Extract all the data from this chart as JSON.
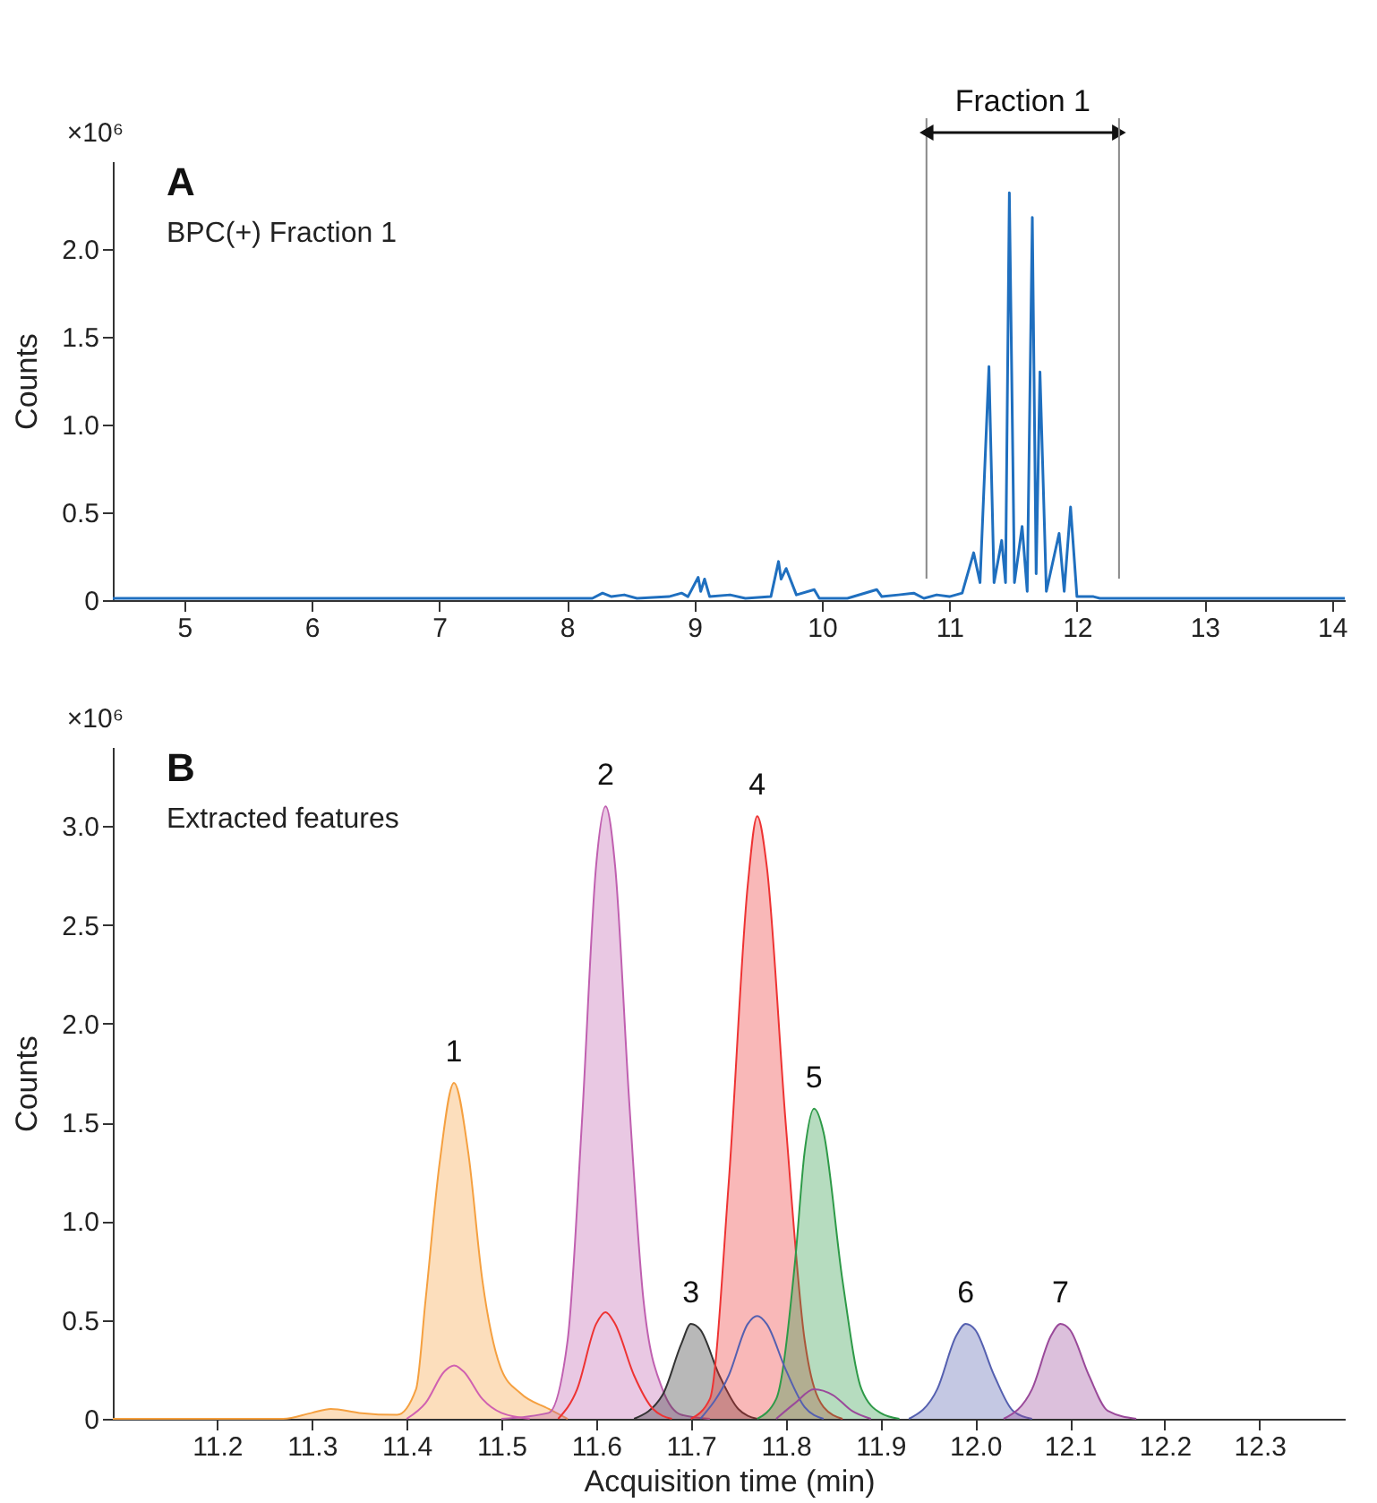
{
  "chart_data": [
    {
      "type": "line",
      "title": "A",
      "subtitle": "BPC(+) Fraction 1",
      "ylabel": "Counts",
      "annotations": [
        "×10⁶"
      ],
      "xlim": [
        4.44,
        14.1
      ],
      "xticks": [
        5,
        6,
        7,
        8,
        9,
        10,
        11,
        12,
        13,
        14
      ],
      "ylim": [
        0,
        2.5
      ],
      "yticks": [
        0,
        {
          "value": 0.5,
          "label": "0.5"
        },
        {
          "value": 1,
          "label": "1.0"
        },
        {
          "value": 1.5,
          "label": "1.5"
        },
        {
          "value": 2,
          "label": "2.0"
        }
      ],
      "grid": false,
      "line_style": "solid",
      "marker": "none",
      "ref_lines": [
        {
          "axis": "x",
          "value": 10.82,
          "label": "Fraction 1",
          "color": "#888888"
        },
        {
          "axis": "x",
          "value": 12.33,
          "color": "#888888"
        }
      ],
      "series": [
        {
          "color": "#1f6fbf",
          "x": [
            4.44,
            6.3,
            6.4,
            6.6,
            7.0,
            7.7,
            8.2,
            8.28,
            8.35,
            8.45,
            8.55,
            8.8,
            8.9,
            8.95,
            9.03,
            9.05,
            9.08,
            9.12,
            9.28,
            9.4,
            9.6,
            9.66,
            9.68,
            9.72,
            9.8,
            9.94,
            9.98,
            10.2,
            10.43,
            10.47,
            10.6,
            10.72,
            10.8,
            10.9,
            11.0,
            11.1,
            11.19,
            11.24,
            11.31,
            11.35,
            11.41,
            11.44,
            11.47,
            11.51,
            11.57,
            11.61,
            11.65,
            11.68,
            11.71,
            11.76,
            11.86,
            11.9,
            11.95,
            12.0,
            12.13,
            12.18,
            12.4,
            14.1
          ],
          "values": [
            0.01,
            0.01,
            0.01,
            0.01,
            0.01,
            0.01,
            0.01,
            0.04,
            0.02,
            0.03,
            0.01,
            0.02,
            0.04,
            0.02,
            0.13,
            0.05,
            0.12,
            0.02,
            0.03,
            0.01,
            0.02,
            0.22,
            0.12,
            0.18,
            0.03,
            0.06,
            0.01,
            0.01,
            0.06,
            0.02,
            0.03,
            0.04,
            0.01,
            0.03,
            0.02,
            0.04,
            0.27,
            0.1,
            1.33,
            0.1,
            0.34,
            0.1,
            2.32,
            0.1,
            0.42,
            0.05,
            2.18,
            0.15,
            1.3,
            0.05,
            0.38,
            0.05,
            0.53,
            0.02,
            0.02,
            0.01,
            0.01,
            0.01
          ]
        }
      ]
    },
    {
      "type": "area",
      "title": "B",
      "subtitle": "Extracted features",
      "ylabel": "Counts",
      "xlabel": "Acquisition time (min)",
      "annotations": [
        "×10⁶",
        {
          "text": "1",
          "x": 11.45,
          "y": 1.7
        },
        {
          "text": "2",
          "x": 11.61,
          "y": 3.1
        },
        {
          "text": "3",
          "x": 11.7,
          "y": 0.48
        },
        {
          "text": "4",
          "x": 11.77,
          "y": 3.05
        },
        {
          "text": "5",
          "x": 11.83,
          "y": 1.57
        },
        {
          "text": "6",
          "x": 11.99,
          "y": 0.48
        },
        {
          "text": "7",
          "x": 12.09,
          "y": 0.48
        }
      ],
      "xlim": [
        11.09,
        12.39
      ],
      "xticks": [
        {
          "value": 11.2,
          "label": "11.2"
        },
        {
          "value": 11.3,
          "label": "11.3"
        },
        {
          "value": 11.4,
          "label": "11.4"
        },
        {
          "value": 11.5,
          "label": "11.5"
        },
        {
          "value": 11.6,
          "label": "11.6"
        },
        {
          "value": 11.7,
          "label": "11.7"
        },
        {
          "value": 11.8,
          "label": "11.8"
        },
        {
          "value": 11.9,
          "label": "11.9"
        },
        {
          "value": 12,
          "label": "12.0"
        },
        {
          "value": 12.1,
          "label": "12.1"
        },
        {
          "value": 12.2,
          "label": "12.2"
        },
        {
          "value": 12.3,
          "label": "12.3"
        }
      ],
      "ylim": [
        0,
        3.4
      ],
      "yticks": [
        0,
        {
          "value": 0.5,
          "label": "0.5"
        },
        {
          "value": 1,
          "label": "1.0"
        },
        {
          "value": 1.5,
          "label": "1.5"
        },
        {
          "value": 2,
          "label": "2.0"
        },
        {
          "value": 2.5,
          "label": "2.5"
        },
        {
          "value": 3,
          "label": "3.0"
        }
      ],
      "grid": false,
      "line_style": "solid",
      "marker": "none",
      "series": [
        {
          "color": "#f5a040",
          "x": [
            11.09,
            11.27,
            11.3,
            11.32,
            11.35,
            11.39,
            11.41,
            11.42,
            11.435,
            11.45,
            11.465,
            11.48,
            11.5,
            11.52,
            11.55,
            11.57
          ],
          "values": [
            0,
            0,
            0.03,
            0.05,
            0.03,
            0.02,
            0.15,
            0.6,
            1.3,
            1.7,
            1.35,
            0.7,
            0.25,
            0.13,
            0.05,
            0
          ]
        },
        {
          "color": "#c060b0",
          "x": [
            11.5,
            11.55,
            11.57,
            11.585,
            11.6,
            11.61,
            11.62,
            11.635,
            11.65,
            11.67,
            11.69,
            11.72
          ],
          "values": [
            0,
            0.03,
            0.4,
            1.5,
            2.8,
            3.1,
            2.8,
            1.6,
            0.6,
            0.15,
            0.02,
            0
          ]
        },
        {
          "color": "#333333",
          "x": [
            11.64,
            11.67,
            11.69,
            11.7,
            11.71,
            11.73,
            11.75,
            11.77
          ],
          "values": [
            0,
            0.12,
            0.38,
            0.48,
            0.45,
            0.22,
            0.05,
            0
          ]
        },
        {
          "color": "#ee3333",
          "x": [
            11.7,
            11.72,
            11.74,
            11.76,
            11.77,
            11.78,
            11.8,
            11.82,
            11.84,
            11.86
          ],
          "values": [
            0,
            0.1,
            1.2,
            2.7,
            3.05,
            2.8,
            1.5,
            0.4,
            0.06,
            0
          ]
        },
        {
          "color": "#2e9a48",
          "x": [
            11.77,
            11.79,
            11.81,
            11.82,
            11.83,
            11.84,
            11.86,
            11.88,
            11.9,
            11.92
          ],
          "values": [
            0,
            0.1,
            0.8,
            1.35,
            1.57,
            1.45,
            0.7,
            0.15,
            0.03,
            0
          ]
        },
        {
          "color": "#5560b0",
          "x": [
            11.93,
            11.96,
            11.98,
            11.99,
            12.0,
            12.02,
            12.04,
            12.06
          ],
          "values": [
            0,
            0.15,
            0.42,
            0.48,
            0.45,
            0.22,
            0.04,
            0
          ]
        },
        {
          "color": "#9a4a9a",
          "x": [
            12.03,
            12.06,
            12.08,
            12.09,
            12.1,
            12.12,
            12.14,
            12.17
          ],
          "values": [
            0,
            0.15,
            0.42,
            0.48,
            0.45,
            0.22,
            0.04,
            0
          ]
        },
        {
          "type": "line",
          "color": "#d060b0",
          "x": [
            11.4,
            11.42,
            11.44,
            11.45,
            11.46,
            11.48,
            11.5,
            11.53
          ],
          "values": [
            0,
            0.08,
            0.24,
            0.27,
            0.24,
            0.1,
            0.03,
            0
          ]
        },
        {
          "type": "line",
          "color": "#ee3333",
          "x": [
            11.56,
            11.58,
            11.6,
            11.61,
            11.62,
            11.64,
            11.66,
            11.68
          ],
          "values": [
            0,
            0.15,
            0.48,
            0.54,
            0.48,
            0.22,
            0.05,
            0
          ]
        },
        {
          "type": "line",
          "color": "#5560b0",
          "x": [
            11.71,
            11.74,
            11.76,
            11.77,
            11.78,
            11.8,
            11.82,
            11.84
          ],
          "values": [
            0,
            0.22,
            0.48,
            0.52,
            0.48,
            0.25,
            0.06,
            0
          ]
        },
        {
          "type": "line",
          "color": "#9a4a9a",
          "x": [
            11.79,
            11.81,
            11.83,
            11.85,
            11.87,
            11.89
          ],
          "values": [
            0,
            0.08,
            0.15,
            0.12,
            0.04,
            0
          ]
        }
      ]
    }
  ]
}
